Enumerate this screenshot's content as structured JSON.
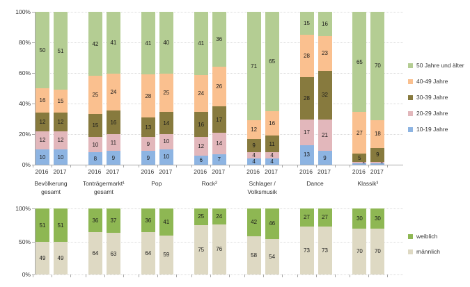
{
  "colors": {
    "axis": "#a6a6a6",
    "grid": "#d9d9d9",
    "value_text": "#1a1a1a",
    "label_text": "#333333",
    "background": "#ffffff",
    "age_10_19": "#8db4e2",
    "age_20_29": "#e2b7bb",
    "age_30_39": "#877a3e",
    "age_40_49": "#fac08f",
    "age_50_plus": "#b4cd93",
    "weiblich": "#8eb753",
    "maennlich": "#ded9c3"
  },
  "chart_data": [
    {
      "id": "age",
      "type": "bar",
      "stacked": true,
      "percent": true,
      "title": "",
      "xlabel": "",
      "ylabel": "",
      "ylim": [
        0,
        100
      ],
      "grid": "dotted-horizontal",
      "legend_position": "right",
      "yticks": [
        {
          "label": "0%",
          "value": 0
        },
        {
          "label": "20%",
          "value": 20
        },
        {
          "label": "40%",
          "value": 40
        },
        {
          "label": "60%",
          "value": 60
        },
        {
          "label": "80%",
          "value": 80
        },
        {
          "label": "100%",
          "value": 100
        }
      ],
      "years": [
        "2016",
        "2017"
      ],
      "show_year_labels": true,
      "categories": [
        {
          "lines": [
            "Bevölkerung",
            "gesamt"
          ]
        },
        {
          "lines": [
            "Tonträgermarkt¹",
            "gesamt"
          ]
        },
        {
          "lines": [
            "Pop"
          ]
        },
        {
          "lines": [
            "Rock²"
          ]
        },
        {
          "lines": [
            "Schlager /",
            "Volksmusik"
          ]
        },
        {
          "lines": [
            "Dance"
          ]
        },
        {
          "lines": [
            "Klassik³"
          ]
        }
      ],
      "series": [
        {
          "name": "10-19 Jahre",
          "color": "#8db4e2",
          "values": {
            "2016": [
              10,
              8,
              9,
              6,
              4,
              13,
              1
            ],
            "2017": [
              10,
              9,
              10,
              7,
              4,
              9,
              1
            ]
          }
        },
        {
          "name": "20-29 Jahre",
          "color": "#e2b7bb",
          "values": {
            "2016": [
              12,
              10,
              9,
              12,
              4,
              17,
              1
            ],
            "2017": [
              12,
              11,
              10,
              14,
              4,
              21,
              1
            ]
          }
        },
        {
          "name": "30-39 Jahre",
          "color": "#877a3e",
          "values": {
            "2016": [
              12,
              15,
              13,
              16,
              9,
              28,
              5
            ],
            "2017": [
              12,
              16,
              14,
              17,
              11,
              32,
              9
            ]
          }
        },
        {
          "name": "40-49 Jahre",
          "color": "#fac08f",
          "values": {
            "2016": [
              16,
              25,
              28,
              24,
              12,
              28,
              27
            ],
            "2017": [
              15,
              24,
              25,
              26,
              16,
              23,
              18
            ]
          }
        },
        {
          "name": "50 Jahre und älter",
          "color": "#b4cd93",
          "values": {
            "2016": [
              50,
              42,
              41,
              41,
              71,
              15,
              65
            ],
            "2017": [
              51,
              41,
              40,
              36,
              65,
              16,
              70
            ]
          }
        }
      ]
    },
    {
      "id": "gender",
      "type": "bar",
      "stacked": true,
      "percent": true,
      "title": "",
      "xlabel": "",
      "ylabel": "",
      "ylim": [
        0,
        100
      ],
      "grid": "dotted-horizontal",
      "legend_position": "right",
      "yticks": [
        {
          "label": "0%",
          "value": 0
        },
        {
          "label": "50%",
          "value": 50
        },
        {
          "label": "100%",
          "value": 100
        }
      ],
      "years": [
        "2016",
        "2017"
      ],
      "show_year_labels": false,
      "categories": [
        {
          "lines": [
            "Bevölkerung",
            "gesamt"
          ]
        },
        {
          "lines": [
            "Tonträgermarkt¹",
            "gesamt"
          ]
        },
        {
          "lines": [
            "Pop"
          ]
        },
        {
          "lines": [
            "Rock²"
          ]
        },
        {
          "lines": [
            "Schlager /",
            "Volksmusik"
          ]
        },
        {
          "lines": [
            "Dance"
          ]
        },
        {
          "lines": [
            "Klassik³"
          ]
        }
      ],
      "series": [
        {
          "name": "männlich",
          "color": "#ded9c3",
          "values": {
            "2016": [
              49,
              64,
              64,
              75,
              58,
              73,
              70
            ],
            "2017": [
              49,
              63,
              59,
              76,
              54,
              73,
              70
            ]
          }
        },
        {
          "name": "weiblich",
          "color": "#8eb753",
          "values": {
            "2016": [
              51,
              36,
              36,
              25,
              42,
              27,
              30
            ],
            "2017": [
              51,
              37,
              41,
              24,
              46,
              27,
              30
            ]
          }
        }
      ]
    }
  ]
}
